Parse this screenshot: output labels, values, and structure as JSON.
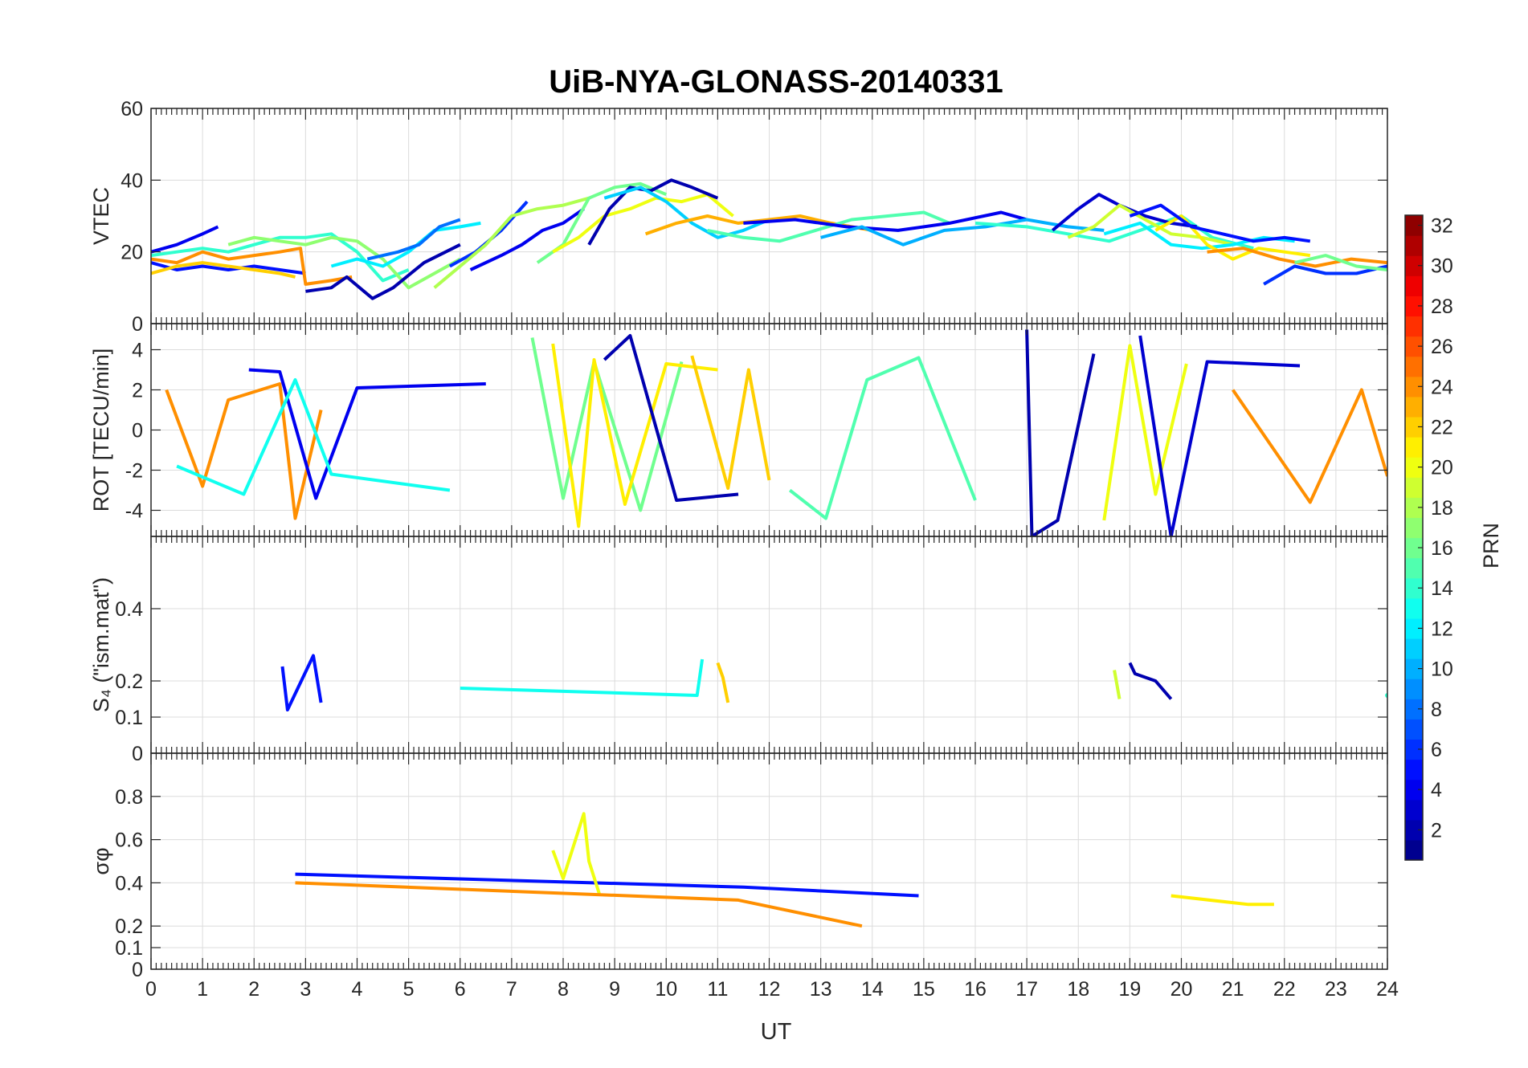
{
  "chart_data": {
    "type": "line",
    "title": "UiB-NYA-GLONASS-20140331",
    "xlabel": "UT",
    "xlim": [
      0,
      24
    ],
    "xticks": [
      0,
      1,
      2,
      3,
      4,
      5,
      6,
      7,
      8,
      9,
      10,
      11,
      12,
      13,
      14,
      15,
      16,
      17,
      18,
      19,
      20,
      21,
      22,
      23,
      24
    ],
    "colorbar": {
      "label": "PRN",
      "colormap": "jet",
      "range": [
        1,
        32
      ],
      "ticks": [
        2,
        4,
        6,
        8,
        10,
        12,
        14,
        16,
        18,
        20,
        22,
        24,
        26,
        28,
        30,
        32
      ]
    },
    "panels": [
      {
        "id": "vtec",
        "ylabel": "VTEC",
        "ylim": [
          0,
          60
        ],
        "yticks": [
          0,
          20,
          40,
          60
        ],
        "series": [
          {
            "prn": 4,
            "x": [
              0,
              0.5,
              1.0,
              1.3
            ],
            "y": [
              20,
              22,
              25,
              27
            ]
          },
          {
            "prn": 5,
            "x": [
              0,
              0.5,
              1,
              1.5,
              2,
              2.5,
              3
            ],
            "y": [
              17,
              15,
              16,
              15,
              16,
              15,
              14
            ]
          },
          {
            "prn": 22,
            "x": [
              0,
              0.5,
              1,
              1.5,
              2,
              2.5,
              2.8
            ],
            "y": [
              14,
              16,
              17,
              16,
              15,
              14,
              13
            ]
          },
          {
            "prn": 24,
            "x": [
              0,
              0.5,
              1,
              1.5,
              2,
              2.5,
              2.9,
              3,
              3.5,
              3.9
            ],
            "y": [
              18,
              17,
              20,
              18,
              19,
              20,
              21,
              11,
              12,
              13
            ]
          },
          {
            "prn": 14,
            "x": [
              0,
              0.5,
              1,
              1.5,
              2,
              2.5,
              3,
              3.5,
              4,
              4.5,
              5
            ],
            "y": [
              19,
              20,
              21,
              20,
              22,
              24,
              24,
              25,
              20,
              12,
              15
            ]
          },
          {
            "prn": 17,
            "x": [
              1.5,
              2,
              2.5,
              3,
              3.5,
              4,
              4.5,
              5,
              5.5,
              6
            ],
            "y": [
              22,
              24,
              23,
              22,
              24,
              23,
              18,
              10,
              14,
              18
            ]
          },
          {
            "prn": 2,
            "x": [
              3,
              3.5,
              3.8,
              4.3,
              4.7,
              5.3,
              6
            ],
            "y": [
              9,
              10,
              13,
              7,
              10,
              17,
              22
            ]
          },
          {
            "prn": 12,
            "x": [
              3.5,
              4,
              4.5,
              5,
              5.5,
              6,
              6.4
            ],
            "y": [
              16,
              18,
              16,
              20,
              26,
              27,
              28
            ]
          },
          {
            "prn": 8,
            "x": [
              4.2,
              4.8,
              5.2,
              5.6,
              6
            ],
            "y": [
              18,
              20,
              22,
              27,
              29
            ]
          },
          {
            "prn": 6,
            "x": [
              5.8,
              6.3,
              6.8,
              7.3
            ],
            "y": [
              16,
              20,
              26,
              34
            ]
          },
          {
            "prn": 18,
            "x": [
              5.5,
              6.5,
              7,
              7.5,
              8,
              8.5
            ],
            "y": [
              10,
              22,
              30,
              32,
              33,
              35
            ]
          },
          {
            "prn": 4,
            "x": [
              6.2,
              6.8,
              7.2,
              7.6,
              8,
              8.4
            ],
            "y": [
              15,
              19,
              22,
              26,
              28,
              32
            ]
          },
          {
            "prn": 16,
            "x": [
              7.5,
              8,
              8.5,
              9,
              9.5,
              10
            ],
            "y": [
              17,
              22,
              35,
              38,
              39,
              36
            ]
          },
          {
            "prn": 20,
            "x": [
              7.8,
              8.3,
              8.8,
              9.3,
              9.8,
              10.3,
              10.8,
              11.3
            ],
            "y": [
              20,
              24,
              30,
              32,
              35,
              34,
              36,
              30
            ]
          },
          {
            "prn": 2,
            "x": [
              8.5,
              8.9,
              9.3,
              9.7,
              10.1,
              10.5,
              11
            ],
            "y": [
              22,
              32,
              38,
              37,
              40,
              38,
              35
            ]
          },
          {
            "prn": 11,
            "x": [
              8.8,
              9.5,
              10,
              10.5,
              11,
              11.5,
              12
            ],
            "y": [
              35,
              38,
              34,
              28,
              24,
              26,
              29
            ]
          },
          {
            "prn": 23,
            "x": [
              9.6,
              10.2,
              10.8,
              11.4,
              12,
              12.6,
              13.2,
              14
            ],
            "y": [
              25,
              28,
              30,
              28,
              29,
              30,
              28,
              26
            ]
          },
          {
            "prn": 15,
            "x": [
              10.8,
              11.5,
              12.2,
              12.9,
              13.6,
              14.3,
              15,
              15.5
            ],
            "y": [
              26,
              24,
              23,
              26,
              29,
              30,
              31,
              28
            ]
          },
          {
            "prn": 4,
            "x": [
              11.5,
              12.5,
              13.5,
              14.5,
              15.5,
              16.5,
              17
            ],
            "y": [
              28,
              29,
              27,
              26,
              28,
              31,
              29
            ]
          },
          {
            "prn": 10,
            "x": [
              13,
              13.8,
              14.6,
              15.4,
              16.2,
              17,
              17.8,
              18.5
            ],
            "y": [
              24,
              27,
              22,
              26,
              27,
              29,
              27,
              26
            ]
          },
          {
            "prn": 14,
            "x": [
              16,
              17,
              17.8,
              18.6,
              19.4,
              20,
              20.6,
              21.4
            ],
            "y": [
              28,
              27,
              25,
              23,
              27,
              30,
              24,
              21
            ]
          },
          {
            "prn": 3,
            "x": [
              17.5,
              18,
              18.4,
              18.8,
              19.3,
              19.8,
              20.3
            ],
            "y": [
              26,
              32,
              36,
              33,
              30,
              28,
              27
            ]
          },
          {
            "prn": 19,
            "x": [
              17.8,
              18.3,
              18.8,
              19.3,
              19.8,
              20.4,
              21
            ],
            "y": [
              24,
              27,
              33,
              29,
              25,
              24,
              22
            ]
          },
          {
            "prn": 12,
            "x": [
              18.5,
              19.2,
              19.8,
              20.4,
              21,
              21.6,
              22.2
            ],
            "y": [
              25,
              28,
              22,
              21,
              22,
              24,
              23
            ]
          },
          {
            "prn": 21,
            "x": [
              19.5,
              20,
              20.5,
              21,
              21.5,
              22,
              22.5
            ],
            "y": [
              26,
              30,
              22,
              18,
              21,
              20,
              19
            ]
          },
          {
            "prn": 5,
            "x": [
              19,
              19.6,
              20.2,
              20.8,
              21.4,
              22,
              22.5
            ],
            "y": [
              30,
              33,
              27,
              25,
              23,
              24,
              23
            ]
          },
          {
            "prn": 24,
            "x": [
              20.5,
              21.2,
              21.9,
              22.6,
              23.3,
              24
            ],
            "y": [
              20,
              21,
              18,
              16,
              18,
              17
            ]
          },
          {
            "prn": 6,
            "x": [
              21.6,
              22.2,
              22.8,
              23.4,
              24
            ],
            "y": [
              11,
              16,
              14,
              14,
              16
            ]
          },
          {
            "prn": 16,
            "x": [
              22.2,
              22.8,
              23.4,
              24
            ],
            "y": [
              17,
              19,
              16,
              15
            ]
          }
        ]
      },
      {
        "id": "rot",
        "ylabel": "ROT [TECU/min]",
        "ylim": [
          -5.3,
          5.3
        ],
        "yticks": [
          -4,
          -2,
          0,
          2,
          4
        ],
        "series": [
          {
            "prn": 24,
            "x": [
              0.3,
              1.0,
              1.5,
              2.5,
              2.8,
              3.3
            ],
            "y": [
              2.0,
              -2.8,
              1.5,
              2.3,
              -4.4,
              1.0
            ]
          },
          {
            "prn": 4,
            "x": [
              1.9,
              2.5,
              3.2,
              4.0,
              6.5
            ],
            "y": [
              3.0,
              2.9,
              -3.4,
              2.1,
              2.3
            ]
          },
          {
            "prn": 13,
            "x": [
              0.5,
              1.8,
              2.8,
              3.5,
              5.8
            ],
            "y": [
              -1.8,
              -3.2,
              2.5,
              -2.2,
              -3.0
            ]
          },
          {
            "prn": 16,
            "x": [
              7.4,
              8.0,
              8.6,
              9.5,
              10.3
            ],
            "y": [
              4.6,
              -3.4,
              3.4,
              -4.0,
              3.4
            ]
          },
          {
            "prn": 21,
            "x": [
              7.8,
              8.3,
              8.6,
              9.2,
              10.0,
              11.0
            ],
            "y": [
              4.3,
              -4.8,
              3.5,
              -3.7,
              3.3,
              3.0
            ]
          },
          {
            "prn": 2,
            "x": [
              8.8,
              9.3,
              10.2,
              11.4
            ],
            "y": [
              3.5,
              4.7,
              -3.5,
              -3.2
            ]
          },
          {
            "prn": 22,
            "x": [
              10.5,
              11.2,
              11.6,
              12.0
            ],
            "y": [
              3.7,
              -2.9,
              3.0,
              -2.5
            ]
          },
          {
            "prn": 15,
            "x": [
              12.4,
              13.1,
              13.9,
              14.9,
              16.0
            ],
            "y": [
              -3.0,
              -4.4,
              2.5,
              3.6,
              -3.5
            ]
          },
          {
            "prn": 2,
            "x": [
              17.0,
              17.1,
              17.6,
              18.3
            ],
            "y": [
              5.0,
              -5.3,
              -4.5,
              3.8
            ]
          },
          {
            "prn": 20,
            "x": [
              18.5,
              19.0,
              19.5,
              20.1
            ],
            "y": [
              -4.5,
              4.2,
              -3.2,
              3.3
            ]
          },
          {
            "prn": 3,
            "x": [
              19.2,
              19.8,
              20.5,
              22.3
            ],
            "y": [
              4.7,
              -5.3,
              3.4,
              3.2
            ]
          },
          {
            "prn": 24,
            "x": [
              21.0,
              22.5,
              23.5,
              24.0
            ],
            "y": [
              2.0,
              -3.6,
              2.0,
              -2.3
            ]
          }
        ]
      },
      {
        "id": "s4",
        "ylabel": "S₄ (\"ism.mat\")",
        "ylim": [
          0,
          0.6
        ],
        "yticks": [
          0,
          0.1,
          0.2,
          0.4
        ],
        "series": [
          {
            "prn": 5,
            "x": [
              2.55,
              2.65,
              3.15,
              3.3
            ],
            "y": [
              0.24,
              0.12,
              0.27,
              0.14
            ]
          },
          {
            "prn": 13,
            "x": [
              6.0,
              10.6,
              10.65,
              10.7
            ],
            "y": [
              0.18,
              0.16,
              0.21,
              0.26
            ]
          },
          {
            "prn": 22,
            "x": [
              11.0,
              11.1,
              11.2
            ],
            "y": [
              0.25,
              0.21,
              0.14
            ]
          },
          {
            "prn": 2,
            "x": [
              19.0,
              19.1,
              19.3,
              19.5,
              19.8
            ],
            "y": [
              0.25,
              0.22,
              0.21,
              0.2,
              0.15
            ]
          },
          {
            "prn": 19,
            "x": [
              18.7,
              18.8
            ],
            "y": [
              0.23,
              0.15
            ]
          },
          {
            "prn": 14,
            "x": [
              24.0
            ],
            "y": [
              0.16
            ]
          }
        ]
      },
      {
        "id": "sigphi",
        "ylabel": "σφ",
        "ylim": [
          0,
          1.0
        ],
        "yticks": [
          0,
          0.1,
          0.2,
          0.4,
          0.6,
          0.8
        ],
        "series": [
          {
            "prn": 5,
            "x": [
              2.8,
              11.5,
              14.9
            ],
            "y": [
              0.44,
              0.38,
              0.34
            ]
          },
          {
            "prn": 20,
            "x": [
              7.8,
              8.0,
              8.4,
              8.5,
              8.7
            ],
            "y": [
              0.55,
              0.42,
              0.72,
              0.5,
              0.35
            ]
          },
          {
            "prn": 24,
            "x": [
              2.8,
              11.4,
              13.8
            ],
            "y": [
              0.4,
              0.32,
              0.2
            ]
          },
          {
            "prn": 21,
            "x": [
              19.8,
              21.3,
              21.8
            ],
            "y": [
              0.34,
              0.3,
              0.3
            ]
          }
        ]
      }
    ]
  }
}
